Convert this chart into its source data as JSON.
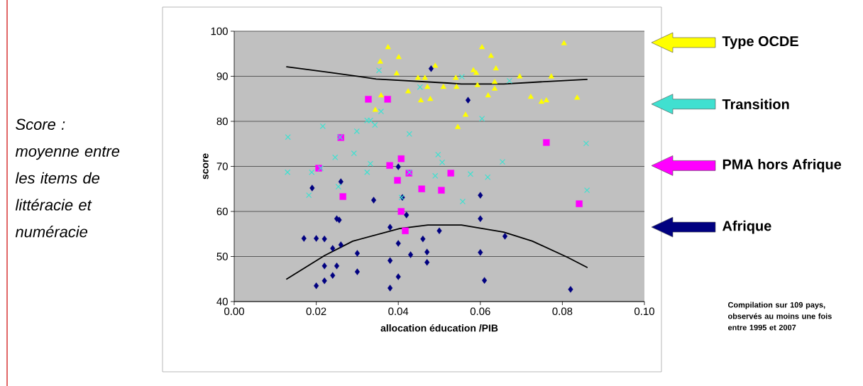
{
  "chart_data": {
    "type": "scatter",
    "xlabel": "allocation éducation /PIB",
    "ylabel": "score",
    "xlim": [
      0,
      0.1
    ],
    "ylim": [
      40,
      100
    ],
    "xticks": [
      {
        "value": 0,
        "label": "0.00"
      },
      {
        "value": 0.02,
        "label": "0.02"
      },
      {
        "value": 0.04,
        "label": "0.04"
      },
      {
        "value": 0.06,
        "label": "0.06"
      },
      {
        "value": 0.08,
        "label": "0.08"
      },
      {
        "value": 0.1,
        "label": "0.10"
      }
    ],
    "yticks": [
      40,
      50,
      60,
      70,
      80,
      90,
      100
    ],
    "grid": "y",
    "legend": "right",
    "annotations": [
      "Score : moyenne entre les items de littéracie et numéracie",
      "Compilation sur 109 pays, observés au moins une fois entre 1995 et 2007"
    ],
    "series": [
      {
        "name": "Type OCDE",
        "marker": "triangle",
        "color": "#ffff00",
        "x": [
          0.0375,
          0.0401,
          0.0356,
          0.049,
          0.0396,
          0.0448,
          0.0465,
          0.0471,
          0.051,
          0.0424,
          0.0358,
          0.0455,
          0.0478,
          0.0344,
          0.0604,
          0.0626,
          0.0804,
          0.0638,
          0.0583,
          0.059,
          0.054,
          0.0696,
          0.0773,
          0.0635,
          0.0593,
          0.0542,
          0.0635,
          0.0619,
          0.0723,
          0.0749,
          0.0761,
          0.0836,
          0.0564,
          0.0545
        ],
        "values": [
          96.4,
          94.2,
          93.2,
          92.3,
          90.6,
          89.6,
          89.6,
          87.6,
          87.6,
          86.6,
          85.7,
          84.6,
          84.9,
          82.5,
          96.4,
          94.5,
          97.3,
          91.7,
          91.3,
          90.7,
          89.6,
          89.9,
          89.9,
          88.7,
          88.0,
          87.6,
          87.2,
          85.7,
          85.4,
          84.3,
          84.6,
          85.2,
          81.4,
          78.7
        ]
      },
      {
        "name": "Transition",
        "marker": "cross",
        "color": "#40e0d0",
        "x": [
          0.0353,
          0.0453,
          0.0358,
          0.0324,
          0.0332,
          0.0343,
          0.0216,
          0.0131,
          0.0299,
          0.0427,
          0.0258,
          0.0292,
          0.0246,
          0.0497,
          0.0507,
          0.0332,
          0.0555,
          0.0671,
          0.0604,
          0.0858,
          0.0654,
          0.013,
          0.0189,
          0.0211,
          0.0324,
          0.0427,
          0.049,
          0.0254,
          0.0182,
          0.0408,
          0.0576,
          0.0618,
          0.0557,
          0.086
        ],
        "values": [
          91.3,
          87.6,
          82.2,
          80.2,
          80.2,
          79.2,
          78.9,
          76.5,
          77.8,
          77.2,
          76.5,
          72.9,
          72.0,
          72.6,
          70.9,
          70.6,
          89.9,
          89.0,
          80.6,
          75.1,
          71.0,
          68.7,
          68.7,
          69.6,
          68.7,
          68.7,
          67.9,
          65.5,
          63.6,
          63.1,
          68.3,
          67.6,
          62.2,
          64.7
        ]
      },
      {
        "name": "PMA hors Afrique",
        "marker": "square",
        "color": "#ff00ff",
        "x": [
          0.0327,
          0.0374,
          0.026,
          0.0407,
          0.0206,
          0.0379,
          0.0398,
          0.0426,
          0.0265,
          0.0457,
          0.0505,
          0.0407,
          0.0417,
          0.0528,
          0.0841,
          0.0761
        ],
        "values": [
          84.9,
          84.9,
          76.4,
          71.7,
          69.6,
          70.2,
          66.9,
          68.5,
          63.3,
          65.0,
          64.7,
          60.0,
          55.7,
          68.5,
          61.7,
          75.3
        ]
      },
      {
        "name": "Afrique",
        "marker": "diamond",
        "color": "#000080",
        "x": [
          0.026,
          0.019,
          0.034,
          0.041,
          0.025,
          0.0256,
          0.042,
          0.038,
          0.017,
          0.02,
          0.022,
          0.026,
          0.024,
          0.046,
          0.05,
          0.04,
          0.03,
          0.047,
          0.043,
          0.038,
          0.022,
          0.025,
          0.047,
          0.03,
          0.024,
          0.022,
          0.04,
          0.02,
          0.038,
          0.04,
          0.06,
          0.06,
          0.066,
          0.06,
          0.061,
          0.082,
          0.048,
          0.057
        ],
        "values": [
          66.6,
          65.2,
          62.5,
          63.1,
          58.4,
          58.1,
          59.2,
          56.5,
          54.0,
          54.0,
          53.9,
          52.6,
          51.8,
          53.9,
          55.7,
          52.9,
          50.7,
          51.0,
          50.4,
          49.1,
          47.9,
          47.9,
          48.7,
          46.6,
          45.8,
          44.6,
          45.5,
          43.5,
          43.0,
          69.9,
          63.6,
          58.4,
          54.5,
          50.9,
          44.7,
          42.7,
          91.7,
          84.7
        ]
      },
      {
        "type": "line",
        "marker": "none",
        "line_style": "solid",
        "color": "#000000",
        "x": [
          0.0128,
          0.023,
          0.0346,
          0.052,
          0.0554,
          0.0657,
          0.0756,
          0.086
        ],
        "values": [
          92.1,
          90.9,
          89.4,
          88.5,
          88.3,
          88.3,
          88.8,
          89.3
        ]
      },
      {
        "type": "line",
        "marker": "none",
        "line_style": "solid",
        "color": "#000000",
        "x": [
          0.0128,
          0.022,
          0.0289,
          0.0403,
          0.0472,
          0.0554,
          0.0657,
          0.0727,
          0.0813,
          0.086
        ],
        "values": [
          45.0,
          50.2,
          53.4,
          56.2,
          57.0,
          57.0,
          55.4,
          53.4,
          49.8,
          47.6
        ]
      }
    ]
  }
}
